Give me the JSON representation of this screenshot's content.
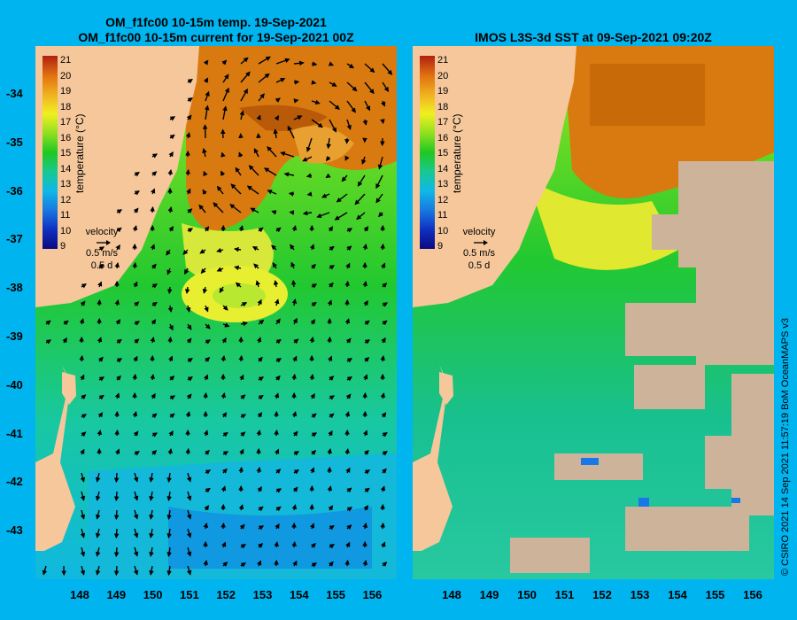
{
  "left_panel": {
    "title_line1": "OM_f1fc00 10-15m temp. 19-Sep-2021",
    "title_line2": "OM_f1fc00 10-15m current for 19-Sep-2021 00Z"
  },
  "right_panel": {
    "title": "IMOS L3S-3d SST at 09-Sep-2021 09:20Z"
  },
  "colorbar": {
    "label": "temperature (°C)",
    "ticks": [
      "21",
      "20",
      "19",
      "18",
      "17",
      "16",
      "15",
      "14",
      "13",
      "12",
      "11",
      "10",
      "9"
    ]
  },
  "velocity_legend": {
    "title": "velocity",
    "speed": "0.5 m/s",
    "duration": "0.5 d"
  },
  "latitude_labels": [
    "-34",
    "-35",
    "-36",
    "-37",
    "-38",
    "-39",
    "-40",
    "-41",
    "-42",
    "-43"
  ],
  "longitude_labels": [
    "148",
    "149",
    "150",
    "151",
    "152",
    "153",
    "154",
    "155",
    "156"
  ],
  "credit": "© CSIRO 2021   14 Sep 2021 11:57:19 BoM OceanMAPS v3",
  "colors": {
    "background": "#00b4f0",
    "land": "#f5c79b",
    "cloud_mask": "#cdb39a",
    "warm": "#d8780a",
    "mid": "#20c820",
    "cool": "#18c0b0"
  }
}
